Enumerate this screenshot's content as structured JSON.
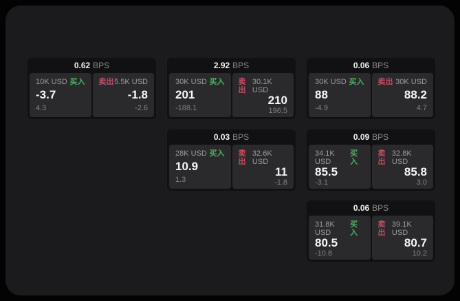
{
  "labels": {
    "bps_unit": "BPS",
    "buy": "买入",
    "sell": "卖出"
  },
  "colors": {
    "background": "#030303",
    "surface": "#1b1b1d",
    "card": "#111113",
    "panel": "#2a2a2c",
    "buy_green": "#4fae63",
    "sell_red": "#c34e62",
    "primary_text": "#f7f7f7",
    "muted_text": "#9c9c9c"
  },
  "cards": [
    {
      "col": 0,
      "row": 0,
      "bps": "0.62",
      "buy": {
        "size": "10K USD",
        "price": "-3.7",
        "delta": "4.3"
      },
      "sell": {
        "size": "5.5K USD",
        "price": "-1.8",
        "delta": "-2.6"
      }
    },
    {
      "col": 1,
      "row": 0,
      "bps": "2.92",
      "buy": {
        "size": "30K USD",
        "price": "201",
        "delta": "-188.1"
      },
      "sell": {
        "size": "30.1K USD",
        "price": "210",
        "delta": "196.5"
      }
    },
    {
      "col": 2,
      "row": 0,
      "bps": "0.06",
      "buy": {
        "size": "30K USD",
        "price": "88",
        "delta": "-4.9"
      },
      "sell": {
        "size": "30K USD",
        "price": "88.2",
        "delta": "4.7"
      }
    },
    {
      "col": 1,
      "row": 1,
      "bps": "0.03",
      "buy": {
        "size": "28K USD",
        "price": "10.9",
        "delta": "1.3"
      },
      "sell": {
        "size": "32.6K USD",
        "price": "11",
        "delta": "-1.8"
      }
    },
    {
      "col": 2,
      "row": 1,
      "bps": "0.09",
      "buy": {
        "size": "34.1K USD",
        "price": "85.5",
        "delta": "-3.1"
      },
      "sell": {
        "size": "32.8K USD",
        "price": "85.8",
        "delta": "3.0"
      }
    },
    {
      "col": 2,
      "row": 2,
      "bps": "0.06",
      "buy": {
        "size": "31.8K USD",
        "price": "80.5",
        "delta": "-10.8"
      },
      "sell": {
        "size": "39.1K USD",
        "price": "80.7",
        "delta": "10.2"
      }
    }
  ]
}
